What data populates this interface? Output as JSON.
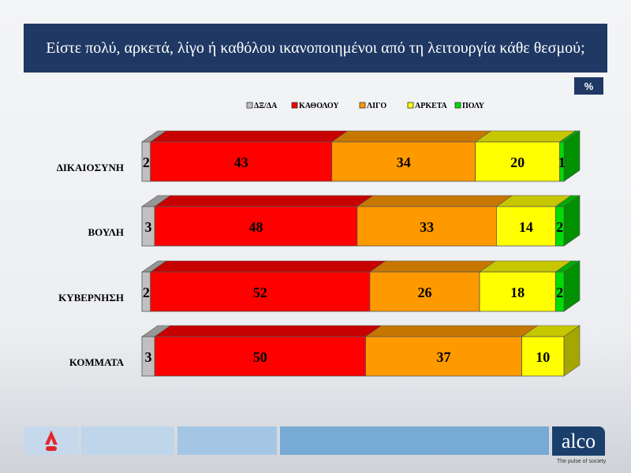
{
  "title": "Είστε πολύ, αρκετά, λίγο ή καθόλου ικανοποιημένοι από τη λειτουργία κάθε θεσμού;",
  "unit_badge": "%",
  "footer": {
    "logo_left": "ALPHA news",
    "logo_right": "alco",
    "tagline": "The pulse of society"
  },
  "chart_data": {
    "type": "bar",
    "orientation": "horizontal",
    "stacked": true,
    "three_d": true,
    "xlim": [
      0,
      100
    ],
    "legend_position": "top",
    "categories": [
      "ΔΙΚΑΙΟΣΥΝΗ",
      "ΒΟΥΛΗ",
      "ΚΥΒΕΡΝΗΣΗ",
      "ΚΟΜΜΑΤΑ"
    ],
    "series": [
      {
        "name": "ΔΞ/ΔΑ",
        "color": "#c0c0c0",
        "values": [
          2,
          3,
          2,
          3
        ]
      },
      {
        "name": "ΚΑΘΟΛΟΥ",
        "color": "#ff0000",
        "values": [
          43,
          48,
          52,
          50
        ]
      },
      {
        "name": "ΛΙΓΟ",
        "color": "#ff9900",
        "values": [
          34,
          33,
          26,
          37
        ]
      },
      {
        "name": "ΑΡΚΕΤΑ",
        "color": "#ffff00",
        "values": [
          20,
          14,
          18,
          10
        ]
      },
      {
        "name": "ΠΟΛΥ",
        "color": "#00dd00",
        "values": [
          1,
          2,
          2,
          0
        ]
      }
    ]
  }
}
